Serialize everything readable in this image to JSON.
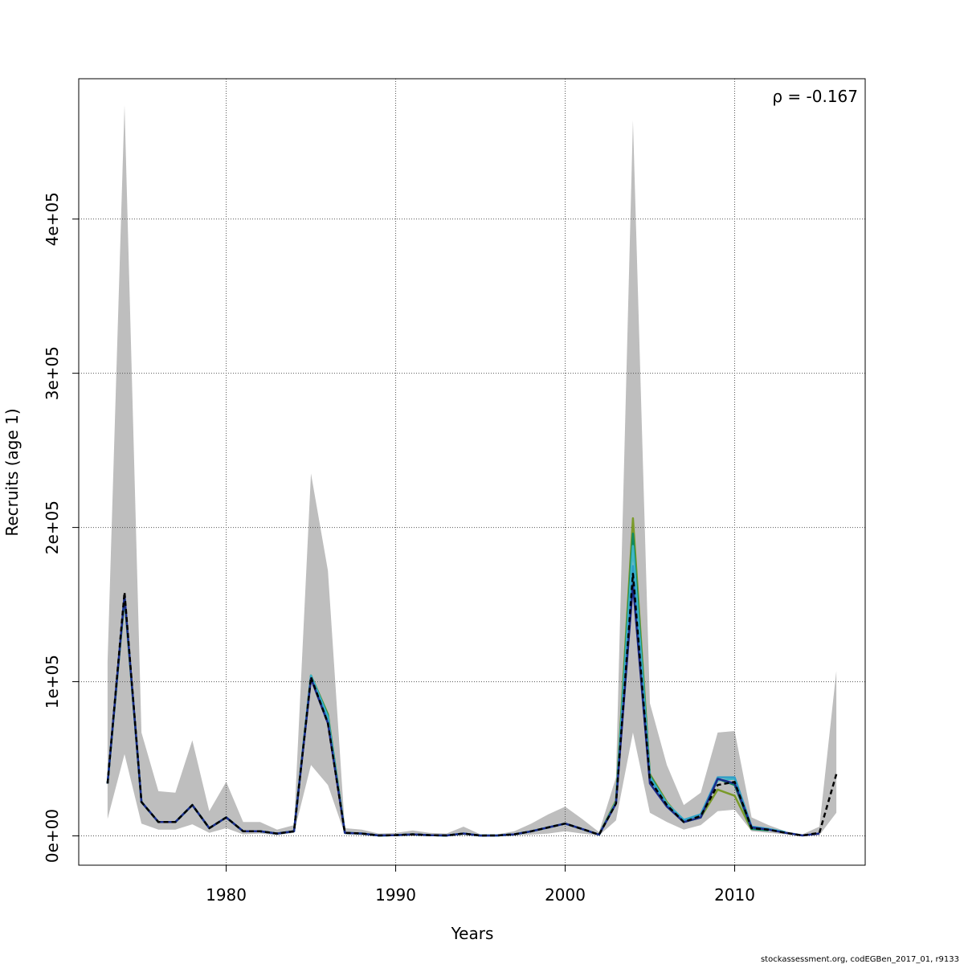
{
  "chart_data": {
    "type": "line",
    "title": "",
    "xlabel": "Years",
    "ylabel": "Recruits (age 1)",
    "xlim": [
      1971.3,
      2017.7
    ],
    "ylim": [
      -19000,
      491000
    ],
    "x_ticks": [
      1980,
      1990,
      2000,
      2010
    ],
    "x_tick_labels": [
      "1980",
      "1990",
      "2000",
      "2010"
    ],
    "y_ticks": [
      0,
      100000,
      200000,
      300000,
      400000
    ],
    "y_tick_labels": [
      "0e+00",
      "1e+05",
      "2e+05",
      "3e+05",
      "4e+05"
    ],
    "grid": true,
    "annotation": "ρ = -0.167",
    "footer": "stockassessment.org, codEGBen_2017_01, r9133",
    "colors": {
      "band": "#bebebe",
      "base": "#000000",
      "peels": [
        "#1b2a8a",
        "#2f9ec8",
        "#3fb6c6",
        "#0f8a5f",
        "#7a9a2a",
        "#a89a3a"
      ]
    },
    "band": {
      "x": [
        1973,
        1974,
        1975,
        1976,
        1977,
        1978,
        1979,
        1980,
        1981,
        1982,
        1983,
        1984,
        1985,
        1986,
        1987,
        1988,
        1989,
        1990,
        1991,
        1992,
        1993,
        1994,
        1995,
        1996,
        1997,
        1998,
        1999,
        2000,
        2001,
        2002,
        2003,
        2004,
        2005,
        2006,
        2007,
        2008,
        2009,
        2010,
        2011,
        2012,
        2013,
        2014,
        2015,
        2016
      ],
      "lower": [
        11000,
        53000,
        8000,
        4000,
        4000,
        7500,
        2000,
        5000,
        1000,
        1500,
        500,
        2000,
        46000,
        33000,
        1000,
        500,
        0,
        0,
        0,
        0,
        0,
        500,
        0,
        0,
        300,
        800,
        1500,
        3000,
        1500,
        200,
        10000,
        67000,
        15000,
        9000,
        4000,
        7000,
        16000,
        17000,
        3000,
        2000,
        1000,
        0,
        500,
        15000
      ],
      "upper": [
        113000,
        474000,
        67000,
        29000,
        28000,
        62000,
        16000,
        35000,
        9000,
        9000,
        4000,
        7000,
        235000,
        172000,
        5000,
        4000,
        1500,
        2000,
        3500,
        2000,
        1500,
        6000,
        1000,
        1000,
        3000,
        8000,
        14000,
        19000,
        11000,
        2500,
        38000,
        464000,
        86000,
        46000,
        20000,
        28000,
        67000,
        68000,
        12000,
        7000,
        3000,
        1000,
        6000,
        107000
      ]
    },
    "series": [
      {
        "x": [
          1973,
          1974,
          1975,
          1976,
          1977,
          1978,
          1979,
          1980,
          1981,
          1982,
          1983,
          1984,
          1985,
          1986,
          1987,
          1988,
          1989,
          1990,
          1991,
          1992,
          1993,
          1994,
          1995,
          1996,
          1997,
          1998,
          1999,
          2000,
          2001,
          2002,
          2003,
          2004,
          2005,
          2006,
          2007,
          2008,
          2009,
          2010,
          2011,
          2012,
          2013,
          2014,
          2015,
          2016
        ],
        "values": [
          34000,
          158000,
          22000,
          9000,
          9000,
          20000,
          5000,
          12000,
          3000,
          3000,
          1500,
          3000,
          103000,
          73000,
          2000,
          1500,
          300,
          500,
          1000,
          500,
          300,
          1500,
          200,
          300,
          1000,
          3000,
          5500,
          8000,
          4500,
          800,
          21000,
          170000,
          36000,
          20000,
          9000,
          13000,
          33000,
          35000,
          5000,
          4000,
          2000,
          200,
          2000,
          40000
        ]
      },
      {
        "x": [
          1973,
          1974,
          1975,
          1976,
          1977,
          1978,
          1979,
          1980,
          1981,
          1982,
          1983,
          1984,
          1985,
          1986,
          1987,
          1988,
          1989,
          1990,
          1991,
          1992,
          1993,
          1994,
          1995,
          1996,
          1997,
          1998,
          1999,
          2000,
          2001,
          2002,
          2003,
          2004,
          2005,
          2006,
          2007,
          2008,
          2009,
          2010,
          2011,
          2012,
          2013,
          2014,
          2015
        ],
        "values": [
          34000,
          156000,
          22000,
          9000,
          9000,
          20000,
          5000,
          12000,
          3000,
          3000,
          1500,
          3000,
          102000,
          73000,
          2000,
          1500,
          300,
          500,
          1000,
          500,
          300,
          1500,
          200,
          300,
          1000,
          3000,
          5500,
          8000,
          4500,
          800,
          21000,
          163000,
          34000,
          19000,
          9000,
          12000,
          37000,
          34000,
          5500,
          4000,
          2000,
          300,
          1500
        ]
      },
      {
        "x": [
          1973,
          1974,
          1975,
          1976,
          1977,
          1978,
          1979,
          1980,
          1981,
          1982,
          1983,
          1984,
          1985,
          1986,
          1987,
          1988,
          1989,
          1990,
          1991,
          1992,
          1993,
          1994,
          1995,
          1996,
          1997,
          1998,
          1999,
          2000,
          2001,
          2002,
          2003,
          2004,
          2005,
          2006,
          2007,
          2008,
          2009,
          2010,
          2011,
          2012,
          2013,
          2014
        ],
        "values": [
          34000,
          156000,
          22000,
          9000,
          9000,
          20000,
          5000,
          12000,
          3000,
          3000,
          1500,
          3000,
          103000,
          75000,
          2000,
          1500,
          300,
          500,
          1000,
          500,
          300,
          1500,
          200,
          300,
          1000,
          3000,
          5500,
          8000,
          4500,
          800,
          21000,
          175000,
          37000,
          20000,
          10000,
          14000,
          38000,
          38000,
          6000,
          4500,
          2000,
          300
        ]
      },
      {
        "x": [
          1973,
          1974,
          1975,
          1976,
          1977,
          1978,
          1979,
          1980,
          1981,
          1982,
          1983,
          1984,
          1985,
          1986,
          1987,
          1988,
          1989,
          1990,
          1991,
          1992,
          1993,
          1994,
          1995,
          1996,
          1997,
          1998,
          1999,
          2000,
          2001,
          2002,
          2003,
          2004,
          2005,
          2006,
          2007,
          2008,
          2009,
          2010,
          2011,
          2012,
          2013
        ],
        "values": [
          34000,
          155000,
          22000,
          9000,
          9000,
          20000,
          5000,
          12000,
          3000,
          3000,
          1500,
          3000,
          104000,
          77000,
          2000,
          1500,
          300,
          500,
          1000,
          500,
          300,
          1500,
          200,
          300,
          1000,
          3000,
          5500,
          8000,
          4500,
          800,
          22000,
          188000,
          38000,
          21000,
          10500,
          14000,
          36000,
          37000,
          6000,
          4500,
          2500
        ]
      },
      {
        "x": [
          1973,
          1974,
          1975,
          1976,
          1977,
          1978,
          1979,
          1980,
          1981,
          1982,
          1983,
          1984,
          1985,
          1986,
          1987,
          1988,
          1989,
          1990,
          1991,
          1992,
          1993,
          1994,
          1995,
          1996,
          1997,
          1998,
          1999,
          2000,
          2001,
          2002,
          2003,
          2004,
          2005,
          2006,
          2007,
          2008,
          2009,
          2010,
          2011,
          2012
        ],
        "values": [
          34000,
          155000,
          22000,
          9000,
          9000,
          20000,
          5000,
          12000,
          3000,
          3000,
          1500,
          3000,
          104000,
          78000,
          2000,
          1500,
          300,
          500,
          1000,
          500,
          300,
          1500,
          200,
          300,
          1000,
          3000,
          5500,
          8000,
          4500,
          800,
          22000,
          196000,
          39000,
          21000,
          9000,
          12000,
          37000,
          33000,
          4500,
          3500
        ]
      },
      {
        "x": [
          1973,
          1974,
          1975,
          1976,
          1977,
          1978,
          1979,
          1980,
          1981,
          1982,
          1983,
          1984,
          1985,
          1986,
          1987,
          1988,
          1989,
          1990,
          1991,
          1992,
          1993,
          1994,
          1995,
          1996,
          1997,
          1998,
          1999,
          2000,
          2001,
          2002,
          2003,
          2004,
          2005,
          2006,
          2007,
          2008,
          2009,
          2010,
          2011
        ],
        "values": [
          34000,
          154000,
          22000,
          9000,
          9000,
          20000,
          5000,
          12000,
          3000,
          3000,
          1500,
          3000,
          104000,
          79000,
          2000,
          1500,
          300,
          500,
          1000,
          500,
          300,
          1500,
          200,
          300,
          1000,
          3000,
          5500,
          8000,
          4500,
          800,
          23000,
          206000,
          40000,
          22000,
          9000,
          12000,
          30000,
          26000,
          4000
        ]
      }
    ]
  }
}
